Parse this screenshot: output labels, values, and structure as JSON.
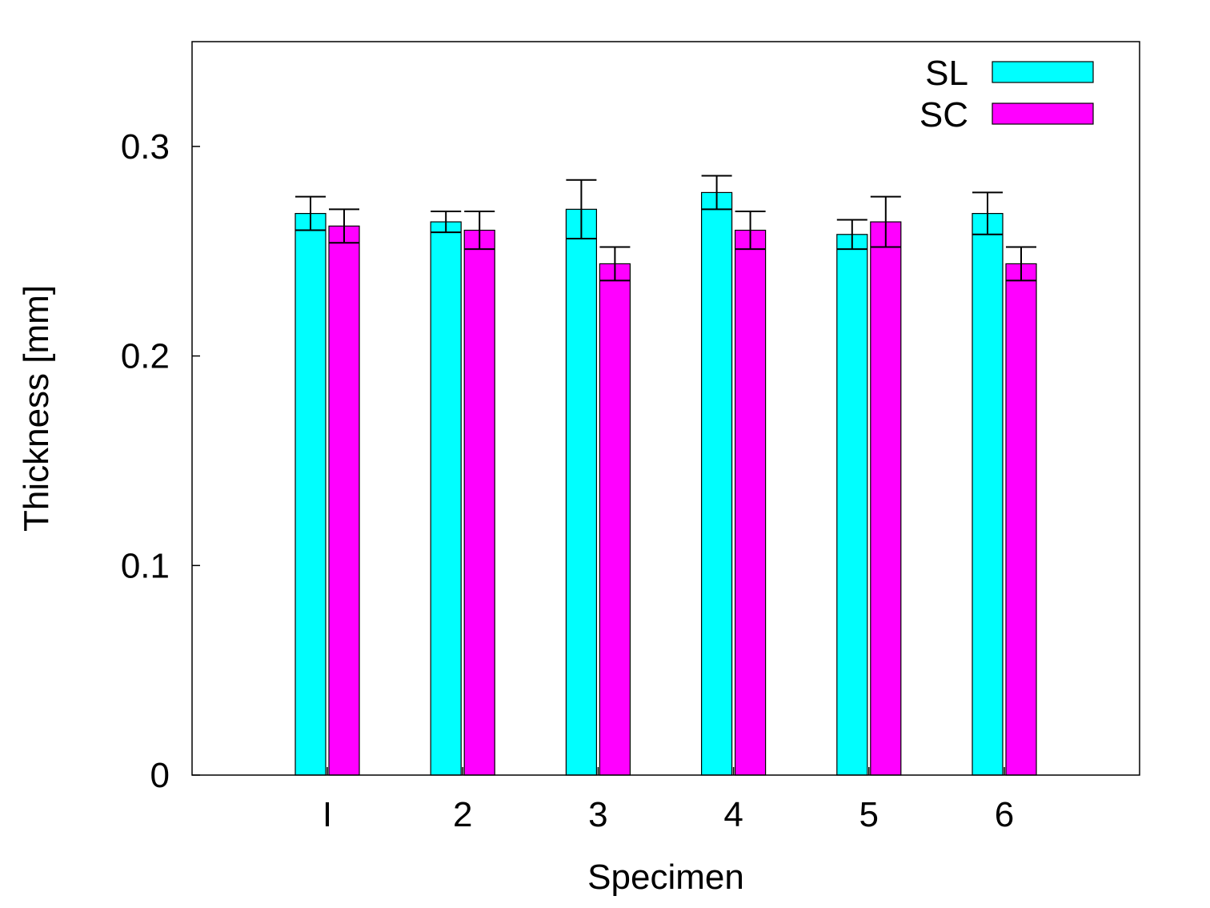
{
  "chart_data": {
    "type": "bar",
    "xlabel": "Specimen",
    "ylabel": "Thickness [mm]",
    "ylim": [
      0,
      0.35
    ],
    "yticks": [
      "0",
      "0.1",
      "0.2",
      "0.3"
    ],
    "categories": [
      "I",
      "2",
      "3",
      "4",
      "5",
      "6"
    ],
    "series": [
      {
        "name": "SL",
        "color": "#00ffff",
        "values": [
          0.268,
          0.264,
          0.27,
          0.278,
          0.258,
          0.268
        ],
        "errors": [
          0.008,
          0.005,
          0.014,
          0.008,
          0.007,
          0.01
        ]
      },
      {
        "name": "SC",
        "color": "#ff00ff",
        "values": [
          0.262,
          0.26,
          0.244,
          0.26,
          0.264,
          0.244
        ],
        "errors": [
          0.008,
          0.009,
          0.008,
          0.009,
          0.012,
          0.008
        ]
      }
    ],
    "legend_position": "top-right",
    "grid": false
  }
}
